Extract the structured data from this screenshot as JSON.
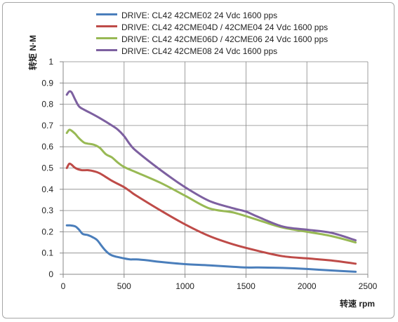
{
  "chart_data": {
    "type": "line",
    "title": "",
    "xlabel": "转速 rpm",
    "ylabel": "转矩 N·M",
    "xlim": [
      0,
      2500
    ],
    "ylim": [
      0,
      1
    ],
    "xticks": [
      0,
      500,
      1000,
      1500,
      2000,
      2500
    ],
    "yticks": [
      0,
      0.1,
      0.2,
      0.3,
      0.4,
      0.5,
      0.6,
      0.7,
      0.8,
      0.9,
      1
    ],
    "xtick_labels": [
      "0",
      "500",
      "1000",
      "1500",
      "2000",
      "2500"
    ],
    "ytick_labels": [
      "0",
      "0.1",
      "0.2",
      "0.3",
      "0.4",
      "0.5",
      "0.6",
      "0.7",
      "0.8",
      "0.9",
      "1"
    ],
    "grid": true,
    "legend_position": "top",
    "series": [
      {
        "name": "DRIVE: CL42 42CME02 24 Vdc  1600 pps",
        "color": "#4a7ebb",
        "x": [
          30,
          60,
          100,
          130,
          160,
          200,
          240,
          280,
          320,
          350,
          380,
          420,
          460,
          500,
          550,
          600,
          700,
          800,
          1000,
          1200,
          1400,
          1500,
          1600,
          1800,
          2000,
          2200,
          2400
        ],
        "y": [
          0.23,
          0.23,
          0.225,
          0.21,
          0.19,
          0.185,
          0.175,
          0.16,
          0.13,
          0.11,
          0.095,
          0.085,
          0.08,
          0.075,
          0.07,
          0.07,
          0.065,
          0.058,
          0.048,
          0.042,
          0.035,
          0.032,
          0.032,
          0.03,
          0.025,
          0.018,
          0.012
        ]
      },
      {
        "name": "DRIVE: CL42 42CME04D / 42CME04 24 Vdc  1600 pps",
        "color": "#be4b48",
        "x": [
          30,
          50,
          70,
          100,
          150,
          200,
          250,
          300,
          400,
          500,
          550,
          600,
          800,
          1000,
          1200,
          1400,
          1600,
          1800,
          2000,
          2200,
          2400
        ],
        "y": [
          0.5,
          0.52,
          0.515,
          0.5,
          0.49,
          0.49,
          0.485,
          0.475,
          0.44,
          0.41,
          0.39,
          0.37,
          0.3,
          0.235,
          0.18,
          0.14,
          0.11,
          0.085,
          0.075,
          0.065,
          0.05
        ]
      },
      {
        "name": "DRIVE: CL42 42CME06D / 42CME06 24 Vdc  1600 pps",
        "color": "#98b954",
        "x": [
          30,
          50,
          70,
          100,
          130,
          170,
          200,
          250,
          300,
          350,
          400,
          450,
          500,
          600,
          800,
          1000,
          1200,
          1400,
          1600,
          1800,
          2000,
          2200,
          2400
        ],
        "y": [
          0.665,
          0.68,
          0.675,
          0.66,
          0.64,
          0.62,
          0.615,
          0.61,
          0.595,
          0.565,
          0.55,
          0.525,
          0.505,
          0.48,
          0.43,
          0.37,
          0.31,
          0.29,
          0.255,
          0.22,
          0.2,
          0.18,
          0.15
        ]
      },
      {
        "name": "DRIVE: CL42 42CME08 24 Vdc  1600 pps",
        "color": "#7d60a0",
        "x": [
          30,
          50,
          70,
          100,
          130,
          170,
          220,
          300,
          400,
          450,
          500,
          550,
          600,
          800,
          1000,
          1200,
          1400,
          1500,
          1600,
          1800,
          2000,
          2200,
          2400
        ],
        "y": [
          0.845,
          0.86,
          0.855,
          0.82,
          0.79,
          0.775,
          0.76,
          0.735,
          0.7,
          0.68,
          0.65,
          0.61,
          0.58,
          0.49,
          0.41,
          0.345,
          0.31,
          0.295,
          0.27,
          0.225,
          0.21,
          0.195,
          0.16
        ]
      }
    ]
  }
}
